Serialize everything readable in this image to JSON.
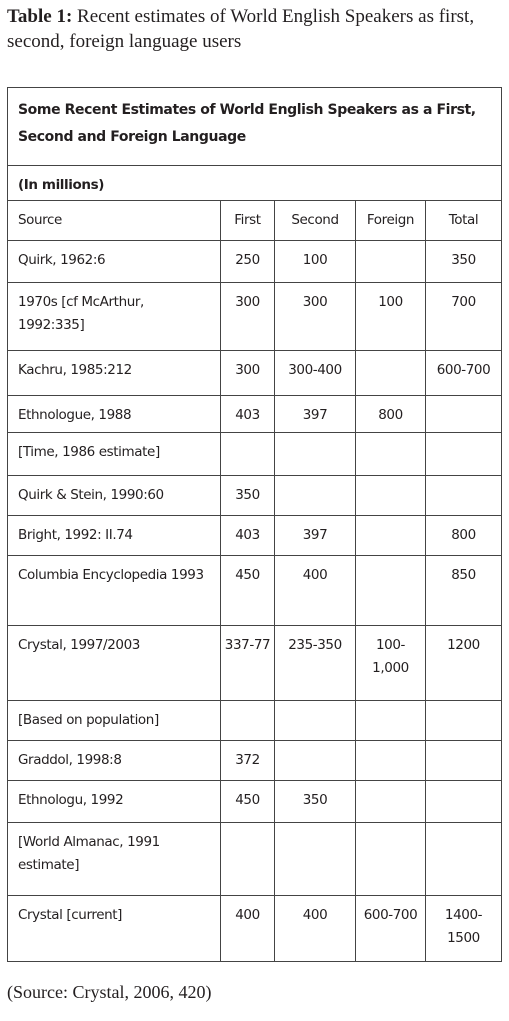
{
  "caption": {
    "label": "Table 1:",
    "text": "Recent estimates of World English Speakers as first, second, foreign language users"
  },
  "table": {
    "title": "Some Recent Estimates of World English Speakers as a First, Second and Foreign Language",
    "unit": "(In millions)",
    "columns": [
      "Source",
      "First",
      "Second",
      "Foreign",
      "Total"
    ],
    "rows": [
      [
        "Quirk, 1962:6",
        "250",
        "100",
        null,
        "350"
      ],
      [
        "1970s [cf McArthur, 1992:335]",
        "300",
        "300",
        "100",
        "700"
      ],
      [
        "Kachru, 1985:212",
        "300",
        "300-400",
        null,
        "600-700"
      ],
      [
        "Ethnologue, 1988",
        "403",
        "397",
        "800",
        null
      ],
      [
        "[Time, 1986 estimate]",
        null,
        null,
        null,
        null
      ],
      [
        "Quirk & Stein, 1990:60",
        "350",
        null,
        null,
        null
      ],
      [
        "Bright, 1992: II.74",
        "403",
        "397",
        null,
        "800"
      ],
      [
        "Columbia Encyclopedia 1993",
        "450",
        "400",
        null,
        "850"
      ],
      [
        "Crystal, 1997/2003",
        "337-77",
        "235-350",
        "100-1,000",
        "1200"
      ],
      [
        "[Based on population]",
        null,
        null,
        null,
        null
      ],
      [
        "Graddol, 1998:8",
        "372",
        null,
        null,
        null
      ],
      [
        "Ethnologu, 1992",
        "450",
        "350",
        null,
        null
      ],
      [
        "[World Almanac, 1991 estimate]",
        null,
        null,
        null,
        null
      ],
      [
        "Crystal [current]",
        "400",
        "400",
        "600-700",
        "1400-1500"
      ]
    ]
  },
  "source": "(Source: Crystal, 2006, 420)"
}
